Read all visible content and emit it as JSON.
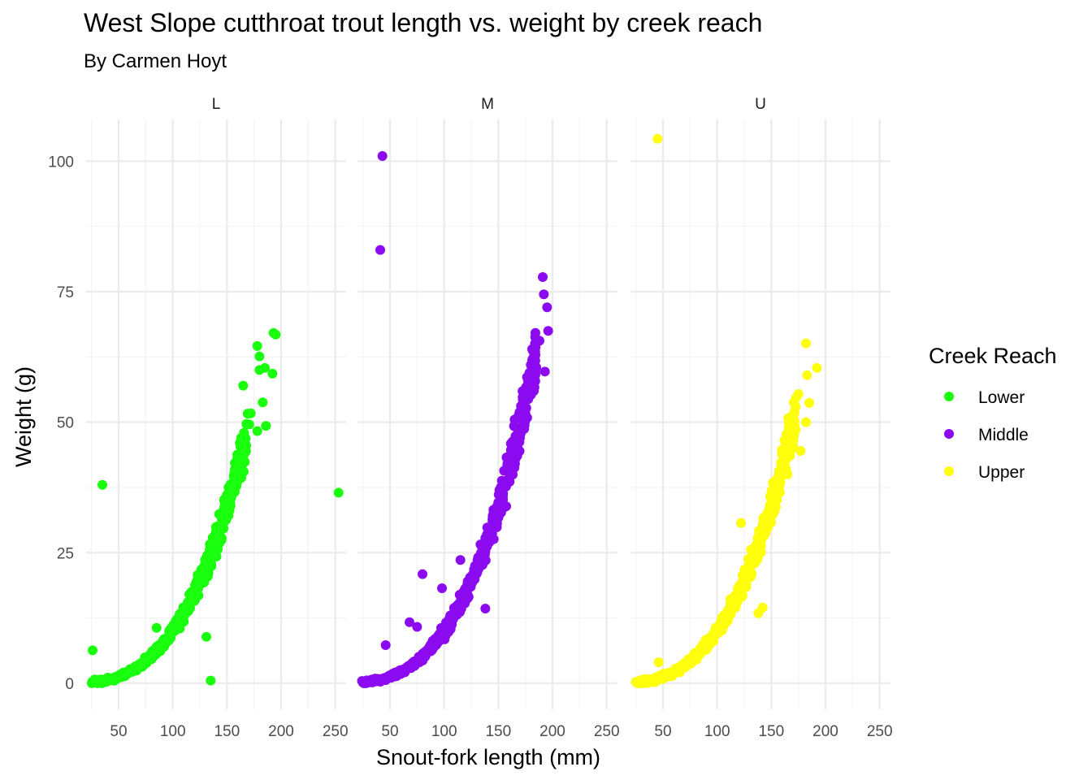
{
  "chart_data": {
    "type": "scatter",
    "title": "West Slope cutthroat trout length vs. weight by creek reach",
    "subtitle": "By Carmen Hoyt",
    "xlabel": "Snout-fork length (mm)",
    "ylabel": "Weight (g)",
    "xlim": [
      20,
      260
    ],
    "ylim": [
      -5,
      108
    ],
    "x_ticks": [
      50,
      100,
      150,
      200,
      250
    ],
    "y_ticks": [
      0,
      25,
      50,
      75,
      100
    ],
    "grid": true,
    "legend": {
      "title": "Creek Reach",
      "position": "right",
      "entries": [
        {
          "label": "Lower",
          "color": "#1aff0d"
        },
        {
          "label": "Middle",
          "color": "#8c0af0"
        },
        {
          "label": "Upper",
          "color": "#ffff0d"
        }
      ]
    },
    "facets": [
      {
        "label": "L",
        "series": "Lower",
        "color": "#1aff0d",
        "trend": {
          "x_min": 25,
          "x_max": 170,
          "a": 1e-05,
          "b": 3.0
        },
        "outliers": [
          {
            "x": 35,
            "y": 38
          },
          {
            "x": 26,
            "y": 6.3
          },
          {
            "x": 253,
            "y": 36.5
          },
          {
            "x": 135,
            "y": 0.5
          },
          {
            "x": 131,
            "y": 8.9
          },
          {
            "x": 178,
            "y": 64.6
          },
          {
            "x": 180,
            "y": 62.6
          },
          {
            "x": 195,
            "y": 66.8
          },
          {
            "x": 193,
            "y": 67.1
          },
          {
            "x": 180,
            "y": 60
          },
          {
            "x": 185,
            "y": 60.4
          },
          {
            "x": 192,
            "y": 59.3
          },
          {
            "x": 186,
            "y": 49.3
          },
          {
            "x": 178,
            "y": 48.3
          },
          {
            "x": 172,
            "y": 51.7
          },
          {
            "x": 183,
            "y": 53.8
          },
          {
            "x": 165,
            "y": 57
          },
          {
            "x": 85,
            "y": 10.6
          }
        ]
      },
      {
        "label": "M",
        "series": "Middle",
        "color": "#8c0af0",
        "trend": {
          "x_min": 25,
          "x_max": 185,
          "a": 1e-05,
          "b": 3.0
        },
        "outliers": [
          {
            "x": 43,
            "y": 101
          },
          {
            "x": 41,
            "y": 83
          },
          {
            "x": 191,
            "y": 77.8
          },
          {
            "x": 192,
            "y": 74.5
          },
          {
            "x": 195,
            "y": 72
          },
          {
            "x": 196,
            "y": 67.5
          },
          {
            "x": 184,
            "y": 66.3
          },
          {
            "x": 188,
            "y": 65.6
          },
          {
            "x": 180,
            "y": 61
          },
          {
            "x": 185,
            "y": 60.5
          },
          {
            "x": 193,
            "y": 59.7
          },
          {
            "x": 80,
            "y": 20.9
          },
          {
            "x": 98,
            "y": 18.2
          },
          {
            "x": 115,
            "y": 23.6
          },
          {
            "x": 68,
            "y": 11.7
          },
          {
            "x": 75,
            "y": 10.8
          },
          {
            "x": 46,
            "y": 7.3
          },
          {
            "x": 138,
            "y": 14.3
          },
          {
            "x": 170,
            "y": 47
          },
          {
            "x": 165,
            "y": 50.5
          }
        ]
      },
      {
        "label": "U",
        "series": "Upper",
        "color": "#ffff0d",
        "trend": {
          "x_min": 25,
          "x_max": 172,
          "a": 1e-05,
          "b": 3.0
        },
        "outliers": [
          {
            "x": 45,
            "y": 104.3
          },
          {
            "x": 182,
            "y": 65.1
          },
          {
            "x": 192,
            "y": 60.4
          },
          {
            "x": 183,
            "y": 59
          },
          {
            "x": 175,
            "y": 55.4
          },
          {
            "x": 185,
            "y": 53.7
          },
          {
            "x": 182,
            "y": 50
          },
          {
            "x": 170,
            "y": 45.3
          },
          {
            "x": 177,
            "y": 44.5
          },
          {
            "x": 122,
            "y": 30.7
          },
          {
            "x": 142,
            "y": 14.5
          },
          {
            "x": 138,
            "y": 13.4
          },
          {
            "x": 46,
            "y": 4
          }
        ]
      }
    ]
  }
}
